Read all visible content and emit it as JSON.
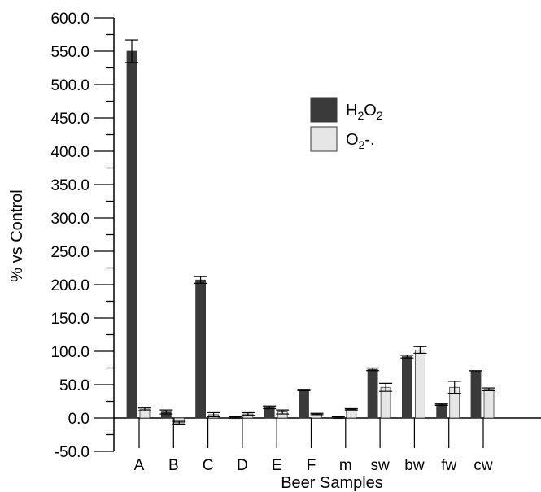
{
  "chart_data": {
    "type": "bar",
    "title": "",
    "xlabel": "Beer Samples",
    "ylabel": "% vs Control",
    "ylim": [
      -50,
      600
    ],
    "yticks": [
      "600.0",
      "550.0",
      "500.0",
      "450.0",
      "400.0",
      "350.0",
      "300.0",
      "250.0",
      "200.0",
      "150.0",
      "100.0",
      "50.0",
      "0.0",
      "-50.0"
    ],
    "categories": [
      "A",
      "B",
      "C",
      "D",
      "E",
      "F",
      "m",
      "sw",
      "bw",
      "fw",
      "cw"
    ],
    "series": [
      {
        "name": "H2O2",
        "color": "#3a3a3a",
        "values": [
          550,
          9,
          207,
          1,
          16,
          42,
          1,
          73,
          92,
          20,
          70
        ],
        "errors": [
          17,
          3,
          5,
          1,
          2,
          1,
          1,
          2,
          2,
          1,
          1
        ]
      },
      {
        "name": "O2-.",
        "color": "#e6e6e6",
        "values": [
          13,
          -7,
          5,
          6,
          9,
          6,
          13,
          46,
          102,
          46,
          43
        ],
        "errors": [
          2,
          2,
          3,
          2,
          3,
          1,
          1,
          6,
          5,
          9,
          2
        ]
      }
    ],
    "legend": {
      "position": "top-right",
      "items": [
        {
          "main": "H",
          "sub1": "2",
          "mid": "O",
          "sub2": "2",
          "tail": ""
        },
        {
          "main": "O",
          "sub1": "2",
          "mid": "-.",
          "sub2": "",
          "tail": ""
        }
      ]
    },
    "grid": false
  }
}
